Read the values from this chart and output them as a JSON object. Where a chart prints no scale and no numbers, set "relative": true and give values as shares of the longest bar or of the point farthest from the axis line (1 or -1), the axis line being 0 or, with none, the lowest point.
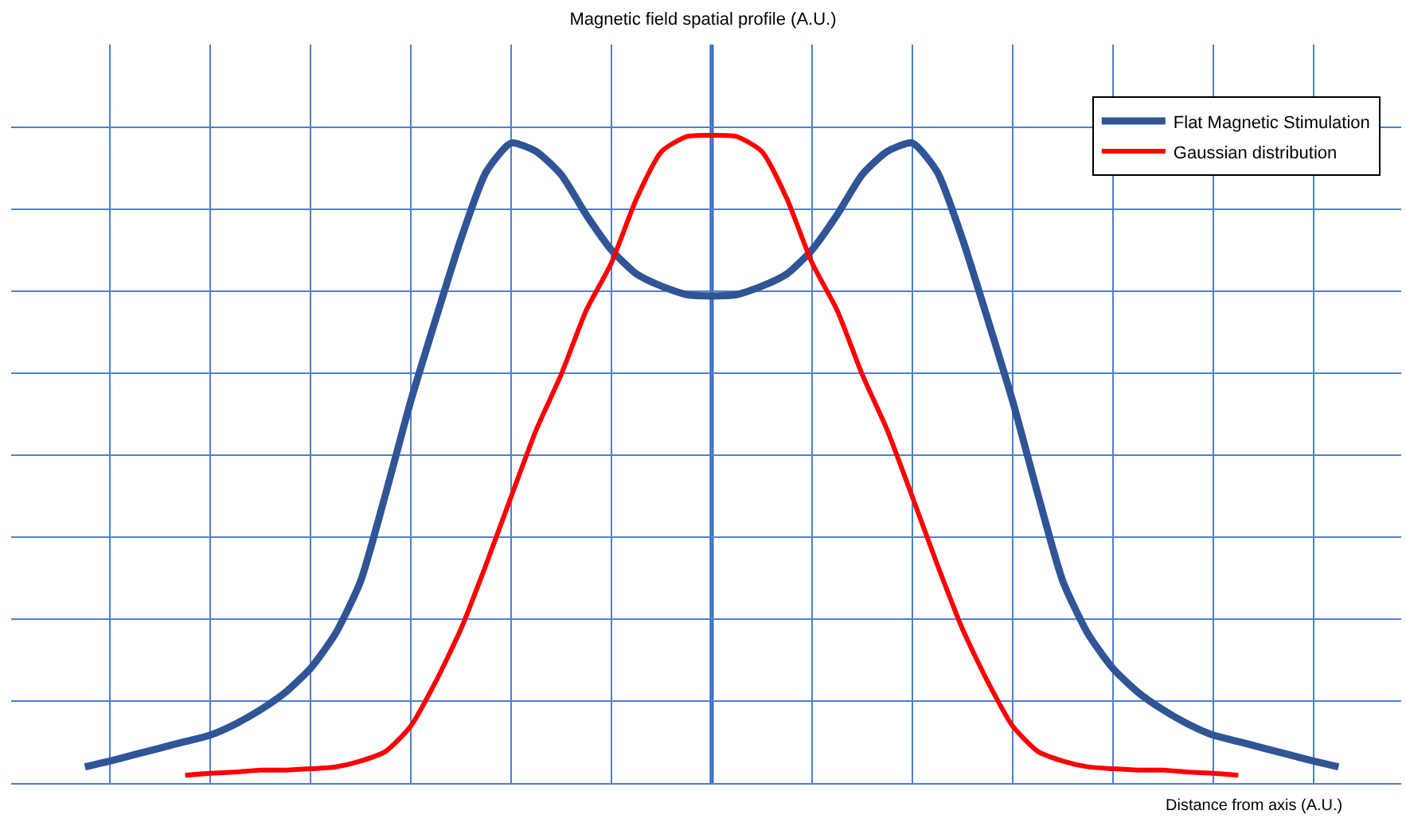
{
  "chart_data": {
    "type": "line",
    "title": "Magnetic field spatial profile (A.U.)",
    "xlabel": "Distance from axis (A.U.)",
    "relative": true,
    "grid": true,
    "legend": "top right",
    "marker": "none",
    "line_style": "solid",
    "categories": [
      null,
      null,
      null,
      null,
      null,
      null,
      null,
      null,
      null,
      null,
      null,
      null,
      null,
      null,
      null,
      null,
      null,
      null,
      null,
      null,
      null,
      null,
      null,
      null,
      null,
      null,
      null,
      null,
      null,
      null,
      null,
      null,
      null,
      null,
      null,
      null,
      null,
      null,
      null,
      null,
      null,
      null,
      null,
      null,
      null,
      null,
      null,
      null,
      null,
      null,
      null
    ],
    "series": [
      {
        "name": "Flat Magnetic Stimulation",
        "color": "#2f5597",
        "values": [
          0.025,
          0.034,
          0.044,
          0.054,
          0.064,
          0.074,
          0.091,
          0.113,
          0.14,
          0.177,
          0.231,
          0.312,
          0.447,
          0.59,
          0.717,
          0.84,
          0.943,
          0.988,
          0.975,
          0.939,
          0.877,
          0.823,
          0.786,
          0.767,
          0.754,
          0.752,
          0.754,
          0.767,
          0.786,
          0.823,
          0.877,
          0.939,
          0.975,
          0.988,
          0.943,
          0.84,
          0.717,
          0.59,
          0.447,
          0.312,
          0.231,
          0.177,
          0.14,
          0.113,
          0.091,
          0.074,
          0.064,
          0.054,
          0.044,
          0.034,
          0.025
        ]
      },
      {
        "name": "Gaussian distribution",
        "color": "#ff0000",
        "values": [
          null,
          null,
          null,
          null,
          0.012,
          0.015,
          0.017,
          0.02,
          0.02,
          0.022,
          0.025,
          0.034,
          0.049,
          0.088,
          0.157,
          0.238,
          0.337,
          0.442,
          0.545,
          0.631,
          0.73,
          0.803,
          0.902,
          0.975,
          0.998,
          1,
          0.998,
          0.975,
          0.902,
          0.803,
          0.73,
          0.631,
          0.545,
          0.442,
          0.337,
          0.238,
          0.157,
          0.088,
          0.049,
          0.034,
          0.025,
          0.022,
          0.02,
          0.02,
          0.017,
          0.015,
          0.012,
          null,
          null,
          null,
          null
        ]
      }
    ]
  }
}
